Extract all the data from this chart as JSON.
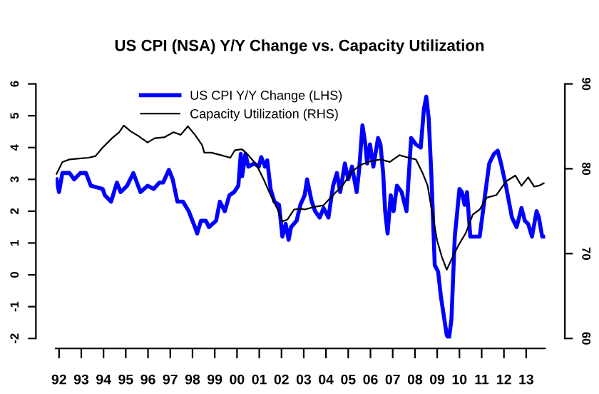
{
  "chart_data": {
    "type": "line",
    "title": "US CPI (NSA) Y/Y Change vs. Capacity Utilization",
    "xlim": [
      1991.85,
      2013.85
    ],
    "xticks": [
      {
        "value": 1992,
        "label": "92"
      },
      {
        "value": 1993,
        "label": "93"
      },
      {
        "value": 1994,
        "label": "94"
      },
      {
        "value": 1995,
        "label": "95"
      },
      {
        "value": 1996,
        "label": "96"
      },
      {
        "value": 1997,
        "label": "97"
      },
      {
        "value": 1998,
        "label": "98"
      },
      {
        "value": 1999,
        "label": "99"
      },
      {
        "value": 2000,
        "label": "00"
      },
      {
        "value": 2001,
        "label": "01"
      },
      {
        "value": 2002,
        "label": "02"
      },
      {
        "value": 2003,
        "label": "03"
      },
      {
        "value": 2004,
        "label": "04"
      },
      {
        "value": 2005,
        "label": "05"
      },
      {
        "value": 2006,
        "label": "06"
      },
      {
        "value": 2007,
        "label": "07"
      },
      {
        "value": 2008,
        "label": "08"
      },
      {
        "value": 2009,
        "label": "09"
      },
      {
        "value": 2010,
        "label": "10"
      },
      {
        "value": 2011,
        "label": "11"
      },
      {
        "value": 2012,
        "label": "12"
      },
      {
        "value": 2013,
        "label": "13"
      }
    ],
    "ylim": [
      -2,
      6
    ],
    "yticks": [
      -2,
      -1,
      0,
      1,
      2,
      3,
      4,
      5,
      6
    ],
    "y2lim": [
      60,
      90
    ],
    "y2ticks": [
      60,
      70,
      80,
      90
    ],
    "legend": "top",
    "grid": false,
    "line_style": "solid",
    "series": [
      {
        "name": "US CPI Y/Y Change (LHS)",
        "color": "#0000ff",
        "axis": "y",
        "x": [
          1991.89,
          1992.0,
          1992.15,
          1992.47,
          1992.68,
          1992.96,
          1993.21,
          1993.43,
          1993.96,
          1994.06,
          1994.34,
          1994.6,
          1994.77,
          1995.06,
          1995.34,
          1995.66,
          1995.98,
          1996.26,
          1996.51,
          1996.68,
          1996.94,
          1997.11,
          1997.32,
          1997.57,
          1997.83,
          1998.11,
          1998.21,
          1998.38,
          1998.6,
          1998.74,
          1999.06,
          1999.23,
          1999.45,
          1999.66,
          1999.87,
          2000.06,
          2000.17,
          2000.23,
          2000.38,
          2000.51,
          2000.77,
          2000.98,
          2001.09,
          2001.26,
          2001.36,
          2001.51,
          2001.68,
          2001.89,
          2002.04,
          2002.19,
          2002.32,
          2002.43,
          2002.68,
          2002.85,
          2003.04,
          2003.15,
          2003.36,
          2003.51,
          2003.72,
          2003.89,
          2004.11,
          2004.32,
          2004.49,
          2004.64,
          2004.85,
          2005.0,
          2005.17,
          2005.38,
          2005.49,
          2005.64,
          2005.77,
          2005.85,
          2005.98,
          2006.13,
          2006.34,
          2006.45,
          2006.57,
          2006.66,
          2006.77,
          2006.91,
          2007.04,
          2007.19,
          2007.4,
          2007.62,
          2007.83,
          2008.04,
          2008.26,
          2008.4,
          2008.51,
          2008.62,
          2008.74,
          2008.89,
          2009.04,
          2009.17,
          2009.43,
          2009.53,
          2009.64,
          2009.79,
          2009.89,
          2010.0,
          2010.11,
          2010.23,
          2010.34,
          2010.49,
          2010.7,
          2010.91,
          2011.13,
          2011.34,
          2011.55,
          2011.72,
          2011.87,
          2012.09,
          2012.36,
          2012.57,
          2012.79,
          2012.94,
          2013.09,
          2013.26,
          2013.47,
          2013.57,
          2013.72,
          2013.82
        ],
        "values": [
          3.0,
          2.6,
          3.2,
          3.2,
          3.0,
          3.2,
          3.2,
          2.8,
          2.7,
          2.5,
          2.3,
          2.9,
          2.6,
          2.8,
          3.2,
          2.6,
          2.8,
          2.7,
          2.9,
          2.9,
          3.3,
          3.0,
          2.3,
          2.3,
          2.0,
          1.5,
          1.3,
          1.7,
          1.7,
          1.5,
          1.7,
          2.3,
          2.0,
          2.5,
          2.6,
          2.8,
          3.8,
          3.1,
          3.8,
          3.4,
          3.5,
          3.4,
          3.7,
          3.4,
          3.6,
          2.7,
          2.3,
          2.2,
          1.2,
          1.6,
          1.1,
          1.5,
          1.7,
          2.2,
          2.5,
          3.0,
          2.3,
          2.0,
          1.8,
          2.1,
          1.8,
          2.8,
          3.2,
          2.6,
          3.5,
          3.0,
          3.4,
          2.6,
          3.3,
          4.7,
          4.1,
          3.5,
          4.1,
          3.4,
          4.3,
          4.1,
          3.2,
          2.0,
          1.3,
          2.5,
          2.0,
          2.8,
          2.6,
          2.0,
          4.3,
          4.1,
          4.0,
          5.2,
          5.6,
          4.9,
          3.1,
          0.3,
          0.1,
          -0.7,
          -1.9,
          -2.0,
          -1.4,
          1.2,
          1.9,
          2.7,
          2.6,
          2.2,
          2.6,
          1.2,
          1.2,
          1.2,
          2.4,
          3.5,
          3.8,
          3.9,
          3.5,
          2.8,
          1.8,
          1.5,
          2.1,
          1.7,
          1.6,
          1.2,
          2.0,
          1.8,
          1.2,
          1.2
        ]
      },
      {
        "name": "Capacity Utilization (RHS)",
        "color": "#000000",
        "axis": "y2",
        "x": [
          1991.89,
          1992.15,
          1992.47,
          1992.89,
          1993.32,
          1993.64,
          1993.96,
          1994.38,
          1994.7,
          1994.91,
          1995.23,
          1995.55,
          1995.98,
          1996.3,
          1996.72,
          1997.15,
          1997.47,
          1997.79,
          1998.11,
          1998.43,
          1998.53,
          1998.85,
          1999.28,
          1999.7,
          1999.91,
          2000.23,
          2000.51,
          2000.87,
          2001.19,
          2001.51,
          2001.83,
          2002.04,
          2002.26,
          2002.57,
          2002.85,
          2003.04,
          2003.47,
          2003.89,
          2004.32,
          2004.74,
          2005.17,
          2005.6,
          2006.02,
          2006.45,
          2006.87,
          2007.3,
          2007.72,
          2008.04,
          2008.36,
          2008.57,
          2008.79,
          2009.0,
          2009.21,
          2009.43,
          2009.64,
          2009.96,
          2010.28,
          2010.6,
          2010.91,
          2011.23,
          2011.66,
          2012.09,
          2012.51,
          2012.79,
          2013.09,
          2013.36,
          2013.57,
          2013.79
        ],
        "values": [
          79.4,
          80.8,
          81.1,
          81.2,
          81.3,
          81.5,
          82.5,
          83.6,
          84.3,
          85.1,
          84.4,
          83.9,
          83.1,
          83.6,
          83.7,
          84.3,
          84.0,
          85.0,
          84.0,
          82.8,
          81.9,
          81.9,
          81.6,
          81.3,
          82.2,
          82.3,
          81.6,
          80.5,
          78.8,
          76.9,
          75.2,
          73.8,
          74.0,
          75.2,
          75.3,
          75.2,
          75.5,
          75.7,
          76.9,
          78.0,
          79.7,
          80.5,
          80.9,
          81.1,
          80.8,
          81.6,
          81.3,
          81.1,
          79.4,
          78.0,
          74.6,
          71.5,
          69.6,
          68.1,
          69.3,
          71.0,
          72.4,
          74.6,
          75.2,
          76.6,
          76.9,
          78.5,
          79.2,
          78.0,
          79.0,
          77.9,
          78.0,
          78.3
        ]
      }
    ]
  }
}
